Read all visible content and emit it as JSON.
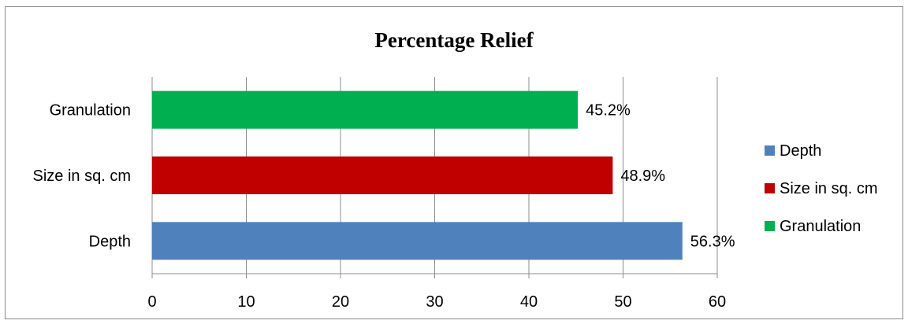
{
  "chart_data": {
    "type": "bar",
    "orientation": "horizontal",
    "title": "Percentage Relief",
    "categories": [
      "Depth",
      "Size in sq. cm",
      "Granulation"
    ],
    "values": [
      56.3,
      48.9,
      45.2
    ],
    "data_labels": [
      "56.3%",
      "48.9%",
      "45.2%"
    ],
    "colors": [
      "#4f81bd",
      "#c00000",
      "#00b050"
    ],
    "xlim": [
      0,
      60
    ],
    "xticks": [
      0,
      10,
      20,
      30,
      40,
      50,
      60
    ],
    "grid": true,
    "legend": {
      "position": "right",
      "entries": [
        "Depth",
        "Size in sq. cm",
        "Granulation"
      ]
    }
  }
}
